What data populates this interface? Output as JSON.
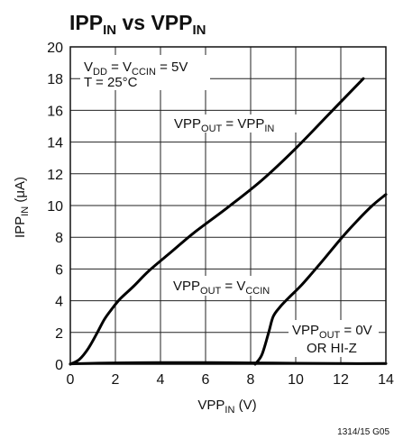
{
  "chart_data": {
    "type": "line",
    "title": {
      "main1": "IPP",
      "sub1": "IN",
      "mid": " vs VPP",
      "sub2": "IN"
    },
    "xlabel": {
      "main": "VPP",
      "sub": "IN",
      "unit": " (V)"
    },
    "ylabel": {
      "main": "IPP",
      "sub": "IN",
      "unit": " (μA)"
    },
    "xlim": [
      0,
      14
    ],
    "ylim": [
      0,
      20
    ],
    "xticks": [
      "0",
      "2",
      "4",
      "6",
      "8",
      "10",
      "12",
      "14"
    ],
    "yticks": [
      "0",
      "2",
      "4",
      "6",
      "8",
      "10",
      "12",
      "14",
      "16",
      "18",
      "20"
    ],
    "grid": true,
    "conditions": {
      "line1": {
        "a": "V",
        "a_sub": "DD",
        "b": " = V",
        "b_sub": "CCIN",
        "c": " = 5V"
      },
      "line2": "T = 25°C"
    },
    "series": [
      {
        "label": {
          "a": "VPP",
          "a_sub": "OUT",
          "b": " = VPP",
          "b_sub": "IN"
        },
        "x": [
          0,
          0.4,
          0.8,
          1.2,
          1.5,
          1.8,
          2.2,
          2.8,
          3.5,
          4.5,
          5.5,
          7,
          8.5,
          10,
          11.5,
          13
        ],
        "y": [
          0,
          0.3,
          1.0,
          2.0,
          2.8,
          3.4,
          4.1,
          4.9,
          5.9,
          7.1,
          8.3,
          9.9,
          11.6,
          13.6,
          15.8,
          18
        ]
      },
      {
        "label": {
          "a": "VPP",
          "a_sub": "OUT",
          "b": " = V",
          "b_sub": "CCIN"
        },
        "x": [
          8.2,
          8.5,
          8.8,
          9.0,
          9.3,
          9.7,
          10.2,
          10.7,
          11.3,
          12,
          12.7,
          13.4,
          14
        ],
        "y": [
          0,
          0.6,
          2.0,
          3.0,
          3.6,
          4.2,
          4.9,
          5.7,
          6.7,
          7.9,
          9.0,
          10.0,
          10.7
        ]
      },
      {
        "label": {
          "a": "VPP",
          "a_sub": "OUT",
          "b": " = 0V",
          "line2": "OR HI-Z"
        },
        "x": [
          0,
          2,
          4,
          6,
          8,
          10,
          12,
          14
        ],
        "y": [
          0.02,
          0.08,
          0.1,
          0.1,
          0.08,
          0.06,
          0.04,
          0.04
        ]
      }
    ],
    "footnote": "1314/15 G05"
  }
}
